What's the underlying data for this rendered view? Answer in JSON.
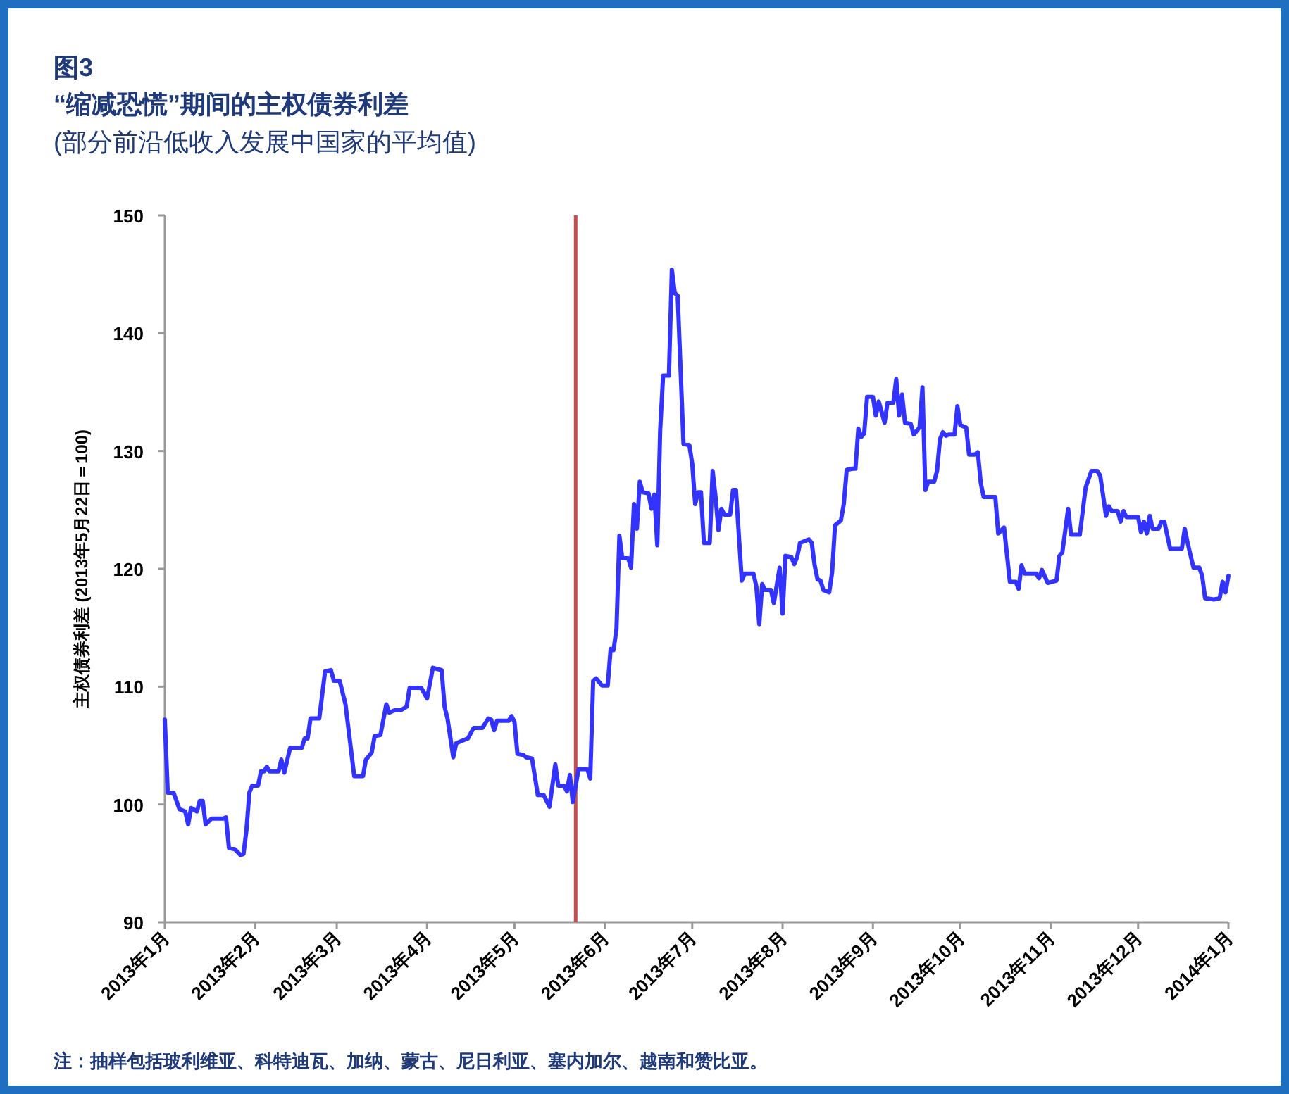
{
  "chart_data": {
    "type": "line",
    "title": "“缩减恐慌”期间的主权债券利差",
    "subtitle": "(部分前沿低收入发展中国家的平均值)",
    "ylabel": "主权债券利差 (2013年5月22日＝100)",
    "annotations": [
      "图3",
      "注：抽样包括玻利维亚、科特迪瓦、加纳、蒙古、尼日利亚、塞内加尔、越南和赞比亚。"
    ],
    "x": [
      "2013-01-01",
      "2013-01-02",
      "2013-01-04",
      "2013-01-06",
      "2013-01-08",
      "2013-01-09",
      "2013-01-10",
      "2013-01-12",
      "2013-01-13",
      "2013-01-14",
      "2013-01-15",
      "2013-01-17",
      "2013-01-21",
      "2013-01-22",
      "2013-01-23",
      "2013-01-25",
      "2013-01-27",
      "2013-01-28",
      "2013-01-29",
      "2013-01-30",
      "2013-01-31",
      "2013-02-02",
      "2013-02-03",
      "2013-02-04",
      "2013-02-05",
      "2013-02-06",
      "2013-02-09",
      "2013-02-10",
      "2013-02-11",
      "2013-02-13",
      "2013-02-17",
      "2013-02-18",
      "2013-02-19",
      "2013-02-20",
      "2013-02-23",
      "2013-02-25",
      "2013-02-27",
      "2013-02-28",
      "2013-03-02",
      "2013-03-04",
      "2013-03-07",
      "2013-03-10",
      "2013-03-11",
      "2013-03-13",
      "2013-03-14",
      "2013-03-16",
      "2013-03-18",
      "2013-03-19",
      "2013-03-21",
      "2013-03-23",
      "2013-03-25",
      "2013-03-26",
      "2013-03-30",
      "2013-04-01",
      "2013-04-03",
      "2013-04-06",
      "2013-04-07",
      "2013-04-08",
      "2013-04-10",
      "2013-04-11",
      "2013-04-13",
      "2013-04-15",
      "2013-04-17",
      "2013-04-20",
      "2013-04-22",
      "2013-04-23",
      "2013-04-24",
      "2013-04-25",
      "2013-04-29",
      "2013-04-30",
      "2013-05-01",
      "2013-05-02",
      "2013-05-04",
      "2013-05-05",
      "2013-05-07",
      "2013-05-09",
      "2013-05-11",
      "2013-05-13",
      "2013-05-15",
      "2013-05-16",
      "2013-05-18",
      "2013-05-19",
      "2013-05-20",
      "2013-05-21",
      "2013-05-23",
      "2013-05-26",
      "2013-05-27",
      "2013-05-28",
      "2013-05-29",
      "2013-05-31",
      "2013-06-02",
      "2013-06-03",
      "2013-06-04",
      "2013-06-05",
      "2013-06-06",
      "2013-06-07",
      "2013-06-09",
      "2013-06-10",
      "2013-06-11",
      "2013-06-12",
      "2013-06-13",
      "2013-06-14",
      "2013-06-16",
      "2013-06-17",
      "2013-06-18",
      "2013-06-19",
      "2013-06-20",
      "2013-06-21",
      "2013-06-23",
      "2013-06-24",
      "2013-06-25",
      "2013-06-26",
      "2013-06-28",
      "2013-06-30",
      "2013-07-01",
      "2013-07-02",
      "2013-07-03",
      "2013-07-04",
      "2013-07-05",
      "2013-07-07",
      "2013-07-08",
      "2013-07-09",
      "2013-07-10",
      "2013-07-11",
      "2013-07-12",
      "2013-07-14",
      "2013-07-15",
      "2013-07-16",
      "2013-07-18",
      "2013-07-19",
      "2013-07-22",
      "2013-07-23",
      "2013-07-24",
      "2013-07-25",
      "2013-07-26",
      "2013-07-28",
      "2013-07-29",
      "2013-07-31",
      "2013-08-01",
      "2013-08-02",
      "2013-08-04",
      "2013-08-05",
      "2013-08-06",
      "2013-08-07",
      "2013-08-10",
      "2013-08-11",
      "2013-08-12",
      "2013-08-13",
      "2013-08-14",
      "2013-08-15",
      "2013-08-17",
      "2013-08-18",
      "2013-08-19",
      "2013-08-21",
      "2013-08-22",
      "2013-08-23",
      "2013-08-25",
      "2013-08-26",
      "2013-08-27",
      "2013-08-28",
      "2013-08-29",
      "2013-08-30",
      "2013-09-01",
      "2013-09-02",
      "2013-09-03",
      "2013-09-05",
      "2013-09-06",
      "2013-09-08",
      "2013-09-09",
      "2013-09-10",
      "2013-09-11",
      "2013-09-12",
      "2013-09-14",
      "2013-09-15",
      "2013-09-17",
      "2013-09-18",
      "2013-09-19",
      "2013-09-20",
      "2013-09-22",
      "2013-09-23",
      "2013-09-24",
      "2013-09-25",
      "2013-09-26",
      "2013-09-27",
      "2013-09-29",
      "2013-09-30",
      "2013-10-01",
      "2013-10-03",
      "2013-10-04",
      "2013-10-06",
      "2013-10-07",
      "2013-10-08",
      "2013-10-09",
      "2013-10-13",
      "2013-10-14",
      "2013-10-16",
      "2013-10-18",
      "2013-10-20",
      "2013-10-21",
      "2013-10-22",
      "2013-10-23",
      "2013-10-27",
      "2013-10-28",
      "2013-10-29",
      "2013-10-31",
      "2013-11-03",
      "2013-11-04",
      "2013-11-05",
      "2013-11-07",
      "2013-11-08",
      "2013-11-11",
      "2013-11-13",
      "2013-11-15",
      "2013-11-17",
      "2013-11-18",
      "2013-11-20",
      "2013-11-21",
      "2013-11-22",
      "2013-11-24",
      "2013-11-25",
      "2013-11-26",
      "2013-11-27",
      "2013-12-01",
      "2013-12-02",
      "2013-12-03",
      "2013-12-04",
      "2013-12-05",
      "2013-12-06",
      "2013-12-08",
      "2013-12-09",
      "2013-12-10",
      "2013-12-12",
      "2013-12-16",
      "2013-12-17",
      "2013-12-18",
      "2013-12-20",
      "2013-12-22",
      "2013-12-23",
      "2013-12-24",
      "2013-12-27",
      "2013-12-29",
      "2013-12-30",
      "2013-12-31",
      "2014-01-01"
    ],
    "series": [
      {
        "color": "#3333ff",
        "values": [
          107.2,
          101.0,
          101.0,
          99.6,
          99.4,
          98.3,
          99.7,
          99.4,
          100.3,
          100.3,
          98.3,
          98.8,
          98.8,
          98.9,
          96.3,
          96.2,
          95.7,
          95.8,
          97.8,
          101.0,
          101.6,
          101.6,
          102.8,
          102.8,
          103.2,
          102.8,
          102.8,
          103.8,
          102.7,
          104.8,
          104.8,
          105.6,
          105.6,
          107.3,
          107.3,
          111.3,
          111.4,
          110.5,
          110.5,
          108.5,
          102.4,
          102.4,
          103.8,
          104.4,
          105.8,
          105.9,
          108.5,
          107.8,
          108.0,
          108.0,
          108.3,
          109.9,
          109.9,
          109.0,
          111.6,
          111.4,
          108.3,
          107.3,
          104.0,
          105.2,
          105.4,
          105.6,
          106.5,
          106.5,
          107.3,
          107.2,
          106.3,
          107.1,
          107.1,
          107.5,
          107.0,
          104.3,
          104.2,
          104.0,
          103.9,
          100.8,
          100.8,
          99.8,
          103.4,
          101.6,
          101.6,
          101.1,
          102.5,
          100.2,
          103.0,
          103.0,
          102.2,
          110.5,
          110.7,
          110.1,
          110.1,
          113.2,
          113.1,
          114.9,
          122.8,
          120.9,
          120.9,
          120.1,
          125.5,
          123.4,
          127.4,
          126.5,
          126.4,
          125.1,
          126.3,
          122.0,
          131.8,
          136.4,
          136.4,
          145.4,
          143.4,
          143.2,
          130.6,
          130.5,
          128.9,
          125.5,
          126.5,
          126.5,
          122.2,
          122.2,
          128.3,
          126.1,
          123.3,
          125.1,
          124.6,
          124.6,
          126.7,
          126.7,
          119.0,
          119.6,
          119.6,
          118.5,
          115.3,
          118.7,
          118.2,
          118.2,
          117.1,
          120.1,
          116.2,
          121.1,
          121.0,
          120.4,
          121.0,
          122.2,
          122.5,
          122.2,
          120.3,
          119.1,
          119.0,
          118.2,
          118.0,
          119.7,
          123.7,
          124.1,
          125.5,
          128.4,
          128.5,
          128.5,
          131.9,
          131.2,
          131.5,
          134.6,
          134.6,
          133.0,
          134.2,
          132.4,
          134.1,
          134.1,
          136.1,
          133.0,
          134.8,
          132.4,
          132.3,
          131.4,
          132.0,
          135.4,
          126.7,
          127.4,
          127.4,
          128.3,
          131.0,
          131.6,
          131.3,
          131.4,
          131.4,
          133.8,
          132.2,
          132.0,
          129.7,
          129.7,
          129.9,
          127.3,
          126.1,
          126.1,
          123.0,
          123.5,
          118.9,
          118.9,
          118.3,
          120.3,
          119.6,
          119.6,
          119.2,
          119.9,
          118.8,
          119.0,
          121.1,
          121.4,
          125.1,
          122.9,
          122.9,
          126.9,
          128.3,
          128.3,
          127.9,
          124.5,
          125.3,
          124.9,
          124.9,
          124.0,
          124.9,
          124.4,
          124.4,
          123.1,
          124.0,
          123.0,
          124.5,
          123.4,
          123.4,
          124.0,
          124.0,
          121.7,
          121.7,
          123.4,
          122.2,
          120.1,
          120.1,
          119.4,
          117.5,
          117.4,
          117.5,
          118.9,
          118.0,
          119.4
        ]
      }
    ],
    "xlim": [
      "2013-01-01",
      "2014-01-01"
    ],
    "ylim": [
      90,
      150
    ],
    "xticks": [
      {
        "value": "2013-01-01",
        "label": "2013年1月"
      },
      {
        "value": "2013-02-01",
        "label": "2013年2月"
      },
      {
        "value": "2013-03-01",
        "label": "2013年3月"
      },
      {
        "value": "2013-04-01",
        "label": "2013年4月"
      },
      {
        "value": "2013-05-01",
        "label": "2013年5月"
      },
      {
        "value": "2013-06-01",
        "label": "2013年6月"
      },
      {
        "value": "2013-07-01",
        "label": "2013年7月"
      },
      {
        "value": "2013-08-01",
        "label": "2013年8月"
      },
      {
        "value": "2013-09-01",
        "label": "2013年9月"
      },
      {
        "value": "2013-10-01",
        "label": "2013年10月"
      },
      {
        "value": "2013-11-01",
        "label": "2013年11月"
      },
      {
        "value": "2013-12-01",
        "label": "2013年12月"
      },
      {
        "value": "2014-01-01",
        "label": "2014年1月"
      }
    ],
    "yticks": [
      90,
      100,
      110,
      120,
      130,
      140,
      150
    ],
    "ref_lines": [
      {
        "axis": "x",
        "value": "2013-05-22",
        "color": "#c0504d"
      }
    ]
  }
}
